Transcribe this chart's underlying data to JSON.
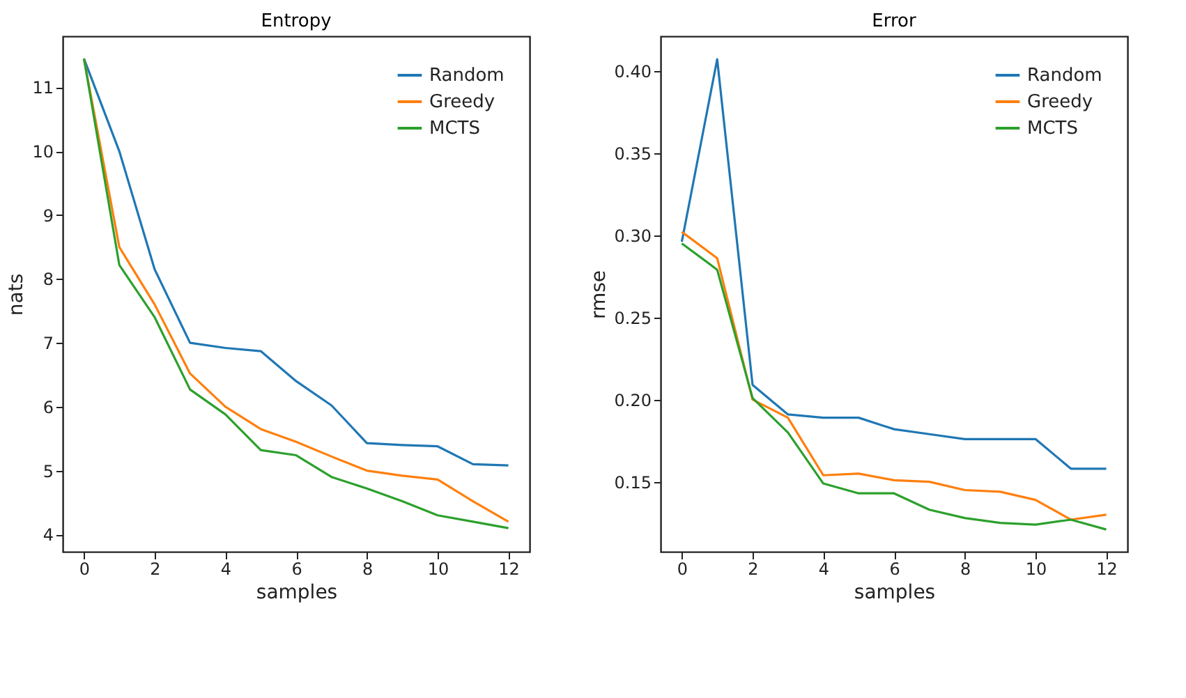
{
  "chart_data": [
    {
      "type": "line",
      "title": "Entropy",
      "xlabel": "samples",
      "ylabel": "nats",
      "x": [
        0,
        1,
        2,
        3,
        4,
        5,
        6,
        7,
        8,
        9,
        10,
        11,
        12
      ],
      "xlim": [
        -0.6,
        12.6
      ],
      "xticks": [
        0,
        2,
        4,
        6,
        8,
        10,
        12
      ],
      "ylim": [
        3.73,
        11.8
      ],
      "yticks": [
        4,
        5,
        6,
        7,
        8,
        9,
        10,
        11
      ],
      "grid": false,
      "legend": "top right",
      "series": [
        {
          "name": "Random",
          "color": "#1f77b4",
          "values": [
            11.45,
            10.0,
            8.15,
            7.0,
            6.92,
            6.87,
            6.4,
            6.02,
            5.43,
            5.4,
            5.38,
            5.1,
            5.08
          ]
        },
        {
          "name": "Greedy",
          "color": "#ff7f0e",
          "values": [
            11.45,
            8.5,
            7.6,
            6.52,
            6.0,
            5.65,
            5.45,
            5.22,
            5.0,
            4.92,
            4.86,
            4.52,
            4.2
          ]
        },
        {
          "name": "MCTS",
          "color": "#2ca02c",
          "values": [
            11.45,
            8.22,
            7.4,
            6.27,
            5.88,
            5.32,
            5.24,
            4.9,
            4.72,
            4.52,
            4.3,
            4.2,
            4.1
          ]
        }
      ]
    },
    {
      "type": "line",
      "title": "Error",
      "xlabel": "samples",
      "ylabel": "rmse",
      "x": [
        0,
        1,
        2,
        3,
        4,
        5,
        6,
        7,
        8,
        9,
        10,
        11,
        12
      ],
      "xlim": [
        -0.6,
        12.6
      ],
      "xticks": [
        0,
        2,
        4,
        6,
        8,
        10,
        12
      ],
      "ylim": [
        0.1075,
        0.421
      ],
      "yticks": [
        {
          "value": 0.15,
          "label": "0.15"
        },
        {
          "value": 0.2,
          "label": "0.20"
        },
        {
          "value": 0.25,
          "label": "0.25"
        },
        {
          "value": 0.3,
          "label": "0.30"
        },
        {
          "value": 0.35,
          "label": "0.35"
        },
        {
          "value": 0.4,
          "label": "0.40"
        }
      ],
      "grid": false,
      "legend": "top right",
      "series": [
        {
          "name": "Random",
          "color": "#1f77b4",
          "values": [
            0.296,
            0.407,
            0.209,
            0.191,
            0.189,
            0.189,
            0.182,
            0.179,
            0.176,
            0.176,
            0.176,
            0.158,
            0.158
          ]
        },
        {
          "name": "Greedy",
          "color": "#ff7f0e",
          "values": [
            0.302,
            0.286,
            0.2,
            0.189,
            0.154,
            0.155,
            0.151,
            0.15,
            0.145,
            0.144,
            0.139,
            0.127,
            0.13
          ]
        },
        {
          "name": "MCTS",
          "color": "#2ca02c",
          "values": [
            0.295,
            0.279,
            0.201,
            0.18,
            0.149,
            0.143,
            0.143,
            0.133,
            0.128,
            0.125,
            0.124,
            0.127,
            0.121
          ]
        }
      ]
    }
  ]
}
